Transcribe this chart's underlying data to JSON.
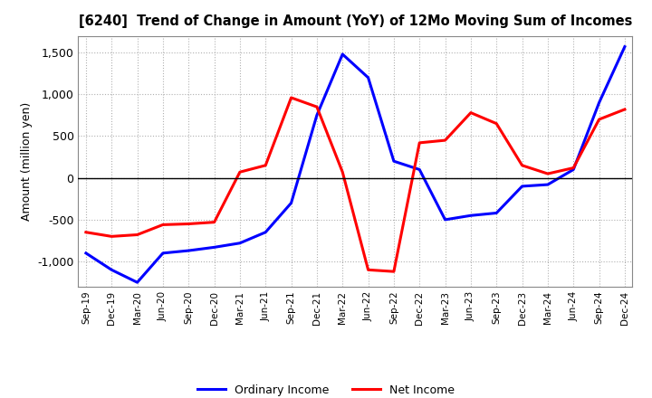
{
  "title": "[6240]  Trend of Change in Amount (YoY) of 12Mo Moving Sum of Incomes",
  "ylabel": "Amount (million yen)",
  "x_labels": [
    "Sep-19",
    "Dec-19",
    "Mar-20",
    "Jun-20",
    "Sep-20",
    "Dec-20",
    "Mar-21",
    "Jun-21",
    "Sep-21",
    "Dec-21",
    "Mar-22",
    "Jun-22",
    "Sep-22",
    "Dec-22",
    "Mar-23",
    "Jun-23",
    "Sep-23",
    "Dec-23",
    "Mar-24",
    "Jun-24",
    "Sep-24",
    "Dec-24"
  ],
  "ordinary_income": [
    -900,
    -1100,
    -1250,
    -900,
    -870,
    -830,
    -780,
    -650,
    -300,
    750,
    1480,
    1200,
    200,
    100,
    -500,
    -450,
    -420,
    -100,
    -80,
    100,
    900,
    1570
  ],
  "net_income": [
    -650,
    -700,
    -680,
    -560,
    -550,
    -530,
    70,
    150,
    960,
    850,
    70,
    -1100,
    -1120,
    420,
    450,
    780,
    650,
    150,
    50,
    120,
    700,
    820
  ],
  "ordinary_color": "#0000ff",
  "net_color": "#ff0000",
  "ylim": [
    -1300,
    1700
  ],
  "yticks": [
    -1000,
    -500,
    0,
    500,
    1000,
    1500
  ],
  "background_color": "#ffffff",
  "grid_color": "#b0b0b0",
  "grid_style": "dotted"
}
